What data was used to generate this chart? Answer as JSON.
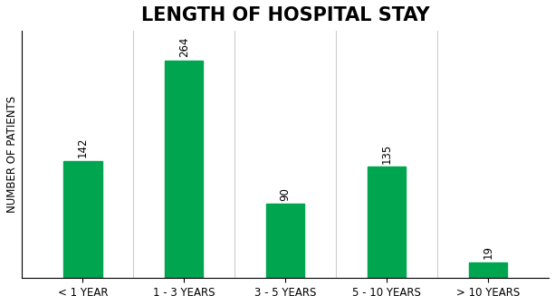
{
  "title": "LENGTH OF HOSPITAL STAY",
  "categories": [
    "< 1 YEAR",
    "1 - 3 YEARS",
    "3 - 5 YEARS",
    "5 - 10 YEARS",
    "> 10 YEARS"
  ],
  "values": [
    142,
    264,
    90,
    135,
    19
  ],
  "bar_color": "#00a550",
  "ylabel": "NUMBER OF PATIENTS",
  "title_fontsize": 15,
  "label_fontsize": 8.5,
  "tick_fontsize": 8.5,
  "ylabel_fontsize": 8.5,
  "background_color": "#ffffff",
  "ylim": [
    0,
    300
  ],
  "bar_width": 0.38
}
